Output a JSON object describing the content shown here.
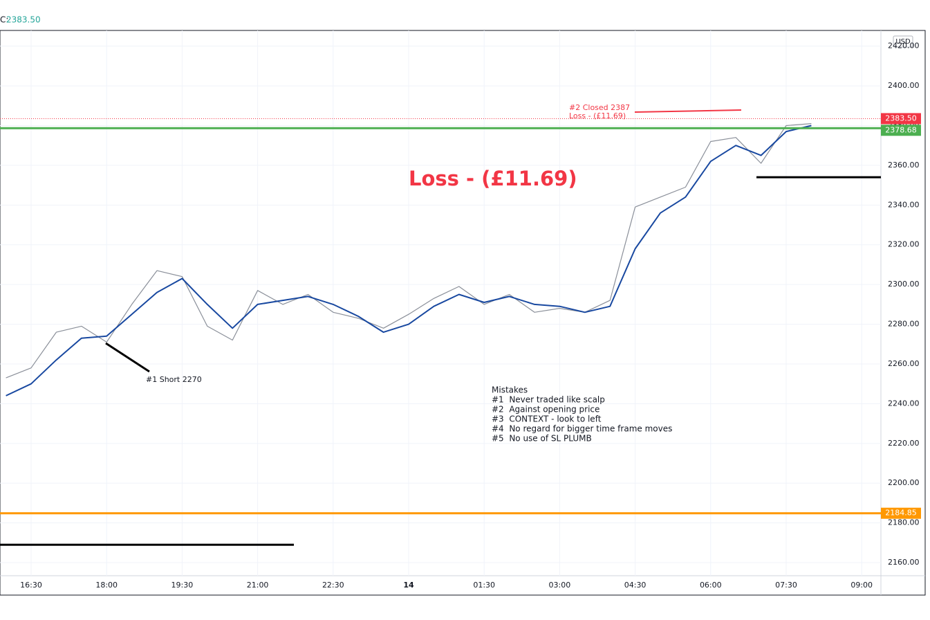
{
  "chart_data": {
    "type": "line",
    "header": {
      "prefix": "C:",
      "value": "2383.50"
    },
    "currency": "USD",
    "categories": [
      null,
      "16:30",
      null,
      null,
      "18:00",
      null,
      null,
      "19:30",
      null,
      null,
      "21:00",
      null,
      null,
      "22:30",
      null,
      null,
      "14",
      null,
      null,
      "01:30",
      null,
      null,
      "03:00",
      null,
      null,
      "04:30",
      null,
      null,
      "06:00",
      null,
      null,
      "07:30",
      null,
      null,
      "09:00"
    ],
    "series": [
      {
        "name": "Price",
        "color": "#8a8f99",
        "values": [
          2253,
          2258,
          2276,
          2279,
          2271,
          2290,
          2307,
          2304,
          2279,
          2272,
          2297,
          2290,
          2295,
          2286,
          2283,
          2278,
          2285,
          2293,
          2299,
          2290,
          2295,
          2286,
          2288,
          2286,
          2292,
          2339,
          2344,
          2349,
          2372,
          2374,
          2361,
          2380,
          2381,
          null,
          null
        ]
      },
      {
        "name": "Moving Average",
        "color": "#1848a0",
        "values": [
          2244,
          2250,
          2262,
          2273,
          2274,
          2285,
          2296,
          2303,
          2290,
          2278,
          2290,
          2292,
          2294,
          2290,
          2284,
          2276,
          2280,
          2289,
          2295,
          2291,
          2294,
          2290,
          2289,
          2286,
          2289,
          2318,
          2336,
          2344,
          2362,
          2370,
          2365,
          2377,
          2380,
          null,
          null
        ]
      }
    ],
    "ylim": [
      2153.4,
      2427.9
    ],
    "yticks": [
      {
        "value": 2160,
        "label": "2160.00"
      },
      {
        "value": 2180,
        "label": "2180.00"
      },
      {
        "value": 2200,
        "label": "2200.00"
      },
      {
        "value": 2220,
        "label": "2220.00"
      },
      {
        "value": 2240,
        "label": "2240.00"
      },
      {
        "value": 2260,
        "label": "2260.00"
      },
      {
        "value": 2280,
        "label": "2280.00"
      },
      {
        "value": 2300,
        "label": "2300.00"
      },
      {
        "value": 2320,
        "label": "2320.00"
      },
      {
        "value": 2340,
        "label": "2340.00"
      },
      {
        "value": 2360,
        "label": "2360.00"
      },
      {
        "value": 2380,
        "label": "2380.00"
      },
      {
        "value": 2400,
        "label": "2400.00"
      },
      {
        "value": 2420,
        "label": "2420.00"
      }
    ],
    "grid": true,
    "levels": [
      {
        "value": 2383.5,
        "label": "2383.50",
        "color": "#f23645",
        "style": "dotted"
      },
      {
        "value": 2378.68,
        "label": "2378.68",
        "color": "#4caf50",
        "style": "solid"
      },
      {
        "value": 2184.85,
        "label": "2184.85",
        "color": "#ff9800",
        "style": "solid"
      }
    ],
    "drawn_levels": [
      {
        "value": 2354,
        "color": "#000000"
      },
      {
        "value": 2169,
        "color": "#000000"
      }
    ],
    "annotations": {
      "big_loss": "Loss - (£11.69)",
      "closed": "#2 Closed 2387",
      "closed_loss": "Loss - (£11.69)",
      "short": "#1 Short 2270",
      "mistakes_title": "Mistakes",
      "mistakes": [
        "#1  Never traded like scalp",
        "#2  Against opening price",
        "#3  CONTEXT - look to left",
        "#4  No regard for bigger time frame moves",
        "#5  No use of SL PLUMB"
      ]
    }
  }
}
